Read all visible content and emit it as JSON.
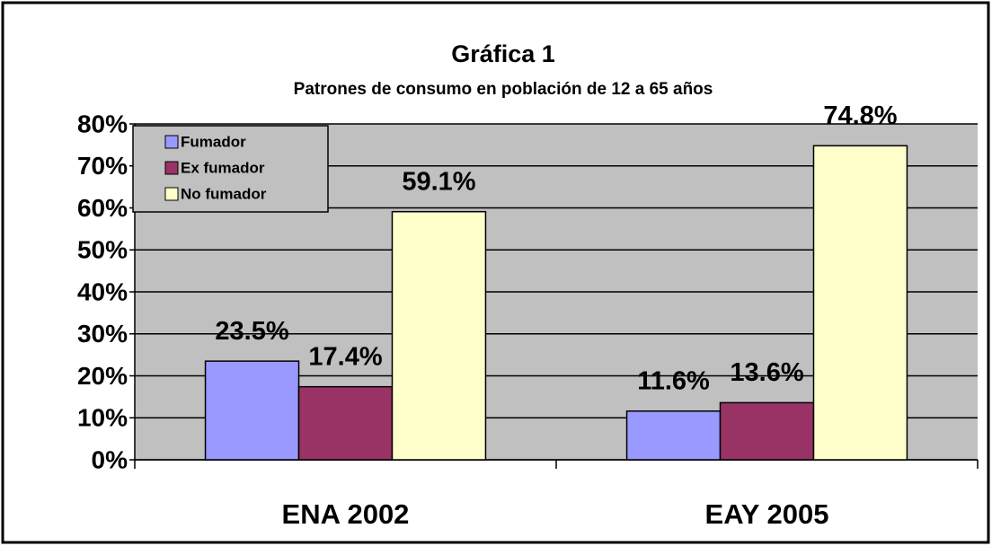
{
  "chart_data": {
    "type": "bar",
    "title": "Gráfica 1",
    "subtitle": "Patrones de consumo en población de 12 a 65 años",
    "categories": [
      "ENA 2002",
      "EAY 2005"
    ],
    "series": [
      {
        "name": "Fumador",
        "color": "#9999ff",
        "values": [
          23.5,
          11.6
        ],
        "value_labels": [
          "23.5%",
          "11.6%"
        ]
      },
      {
        "name": "Ex fumador",
        "color": "#993366",
        "values": [
          17.4,
          13.6
        ],
        "value_labels": [
          "17.4%",
          "13.6%"
        ]
      },
      {
        "name": "No fumador",
        "color": "#ffffcc",
        "values": [
          59.1,
          74.8
        ],
        "value_labels": [
          "59.1%",
          "74.8%"
        ]
      }
    ],
    "ylim": [
      0,
      80
    ],
    "yticks": [
      {
        "value": 0,
        "label": "0%"
      },
      {
        "value": 10,
        "label": "10%"
      },
      {
        "value": 20,
        "label": "20%"
      },
      {
        "value": 30,
        "label": "30%"
      },
      {
        "value": 40,
        "label": "40%"
      },
      {
        "value": 50,
        "label": "50%"
      },
      {
        "value": 60,
        "label": "60%"
      },
      {
        "value": 70,
        "label": "70%"
      },
      {
        "value": 80,
        "label": "80%"
      }
    ],
    "grid": true,
    "legend": "top-left"
  }
}
